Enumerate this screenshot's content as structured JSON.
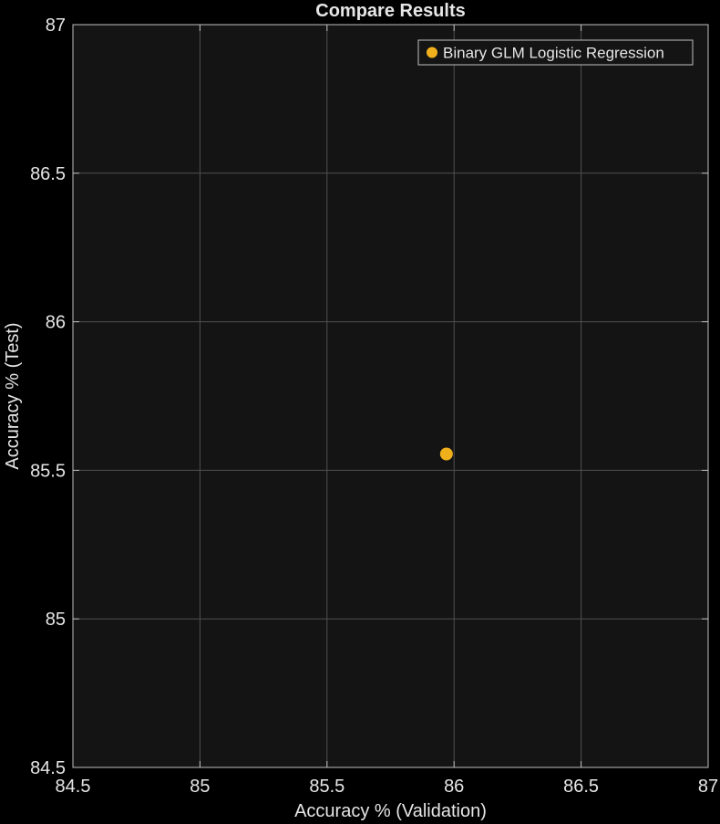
{
  "chart_data": {
    "type": "scatter",
    "title": "Compare Results",
    "xlabel": "Accuracy % (Validation)",
    "ylabel": "Accuracy % (Test)",
    "xlim": [
      84.5,
      87
    ],
    "ylim": [
      84.5,
      87
    ],
    "xticks": [
      84.5,
      85,
      85.5,
      86,
      86.5,
      87
    ],
    "yticks": [
      84.5,
      85,
      85.5,
      86,
      86.5,
      87
    ],
    "xtick_labels": [
      "84.5",
      "85",
      "85.5",
      "86",
      "86.5",
      "87"
    ],
    "ytick_labels": [
      "84.5",
      "85",
      "85.5",
      "86",
      "86.5",
      "87"
    ],
    "grid": true,
    "legend": "top-right",
    "series": [
      {
        "name": "Binary GLM Logistic Regression",
        "color": "#f0b01c",
        "points": [
          {
            "x": 85.97,
            "y": 85.555
          }
        ]
      }
    ]
  },
  "colors": {
    "figure_background": "#000000",
    "axes_background": "#141414",
    "grid": "#505050",
    "axis": "#bfbfbf",
    "text": "#e6e6e6"
  }
}
